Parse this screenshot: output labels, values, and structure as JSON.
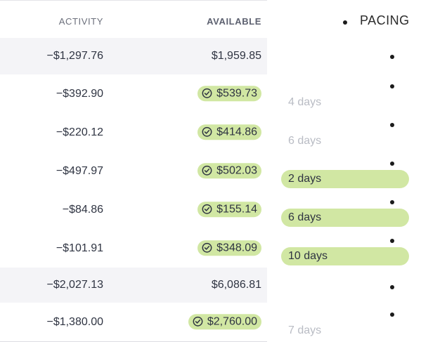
{
  "headers": {
    "activity": "ACTIVITY",
    "available": "AVAILABLE",
    "pacing": "PACING"
  },
  "rows": [
    {
      "activity": "−$1,297.76",
      "available": "$1,959.85",
      "pill": false,
      "group": true,
      "pacing": "",
      "pacing_style": "none"
    },
    {
      "activity": "−$392.90",
      "available": "$539.73",
      "pill": true,
      "group": false,
      "pacing": "4 days",
      "pacing_style": "muted"
    },
    {
      "activity": "−$220.12",
      "available": "$414.86",
      "pill": true,
      "group": false,
      "pacing": "6 days",
      "pacing_style": "muted"
    },
    {
      "activity": "−$497.97",
      "available": "$502.03",
      "pill": true,
      "group": false,
      "pacing": "2 days",
      "pacing_style": "bar"
    },
    {
      "activity": "−$84.86",
      "available": "$155.14",
      "pill": true,
      "group": false,
      "pacing": "6 days",
      "pacing_style": "bar"
    },
    {
      "activity": "−$101.91",
      "available": "$348.09",
      "pill": true,
      "group": false,
      "pacing": "10 days",
      "pacing_style": "bar"
    },
    {
      "activity": "−$2,027.13",
      "available": "$6,086.81",
      "pill": false,
      "group": true,
      "pacing": "",
      "pacing_style": "none"
    },
    {
      "activity": "−$1,380.00",
      "available": "$2,760.00",
      "pill": true,
      "group": false,
      "pacing": "7 days",
      "pacing_style": "muted"
    }
  ],
  "colors": {
    "pill": "#d1e7a3",
    "group_row": "#f4f4f7",
    "muted_text": "#b9bcc4"
  },
  "icons": {
    "pill_icon": "check-circle-icon",
    "list_marker": "bullet"
  }
}
